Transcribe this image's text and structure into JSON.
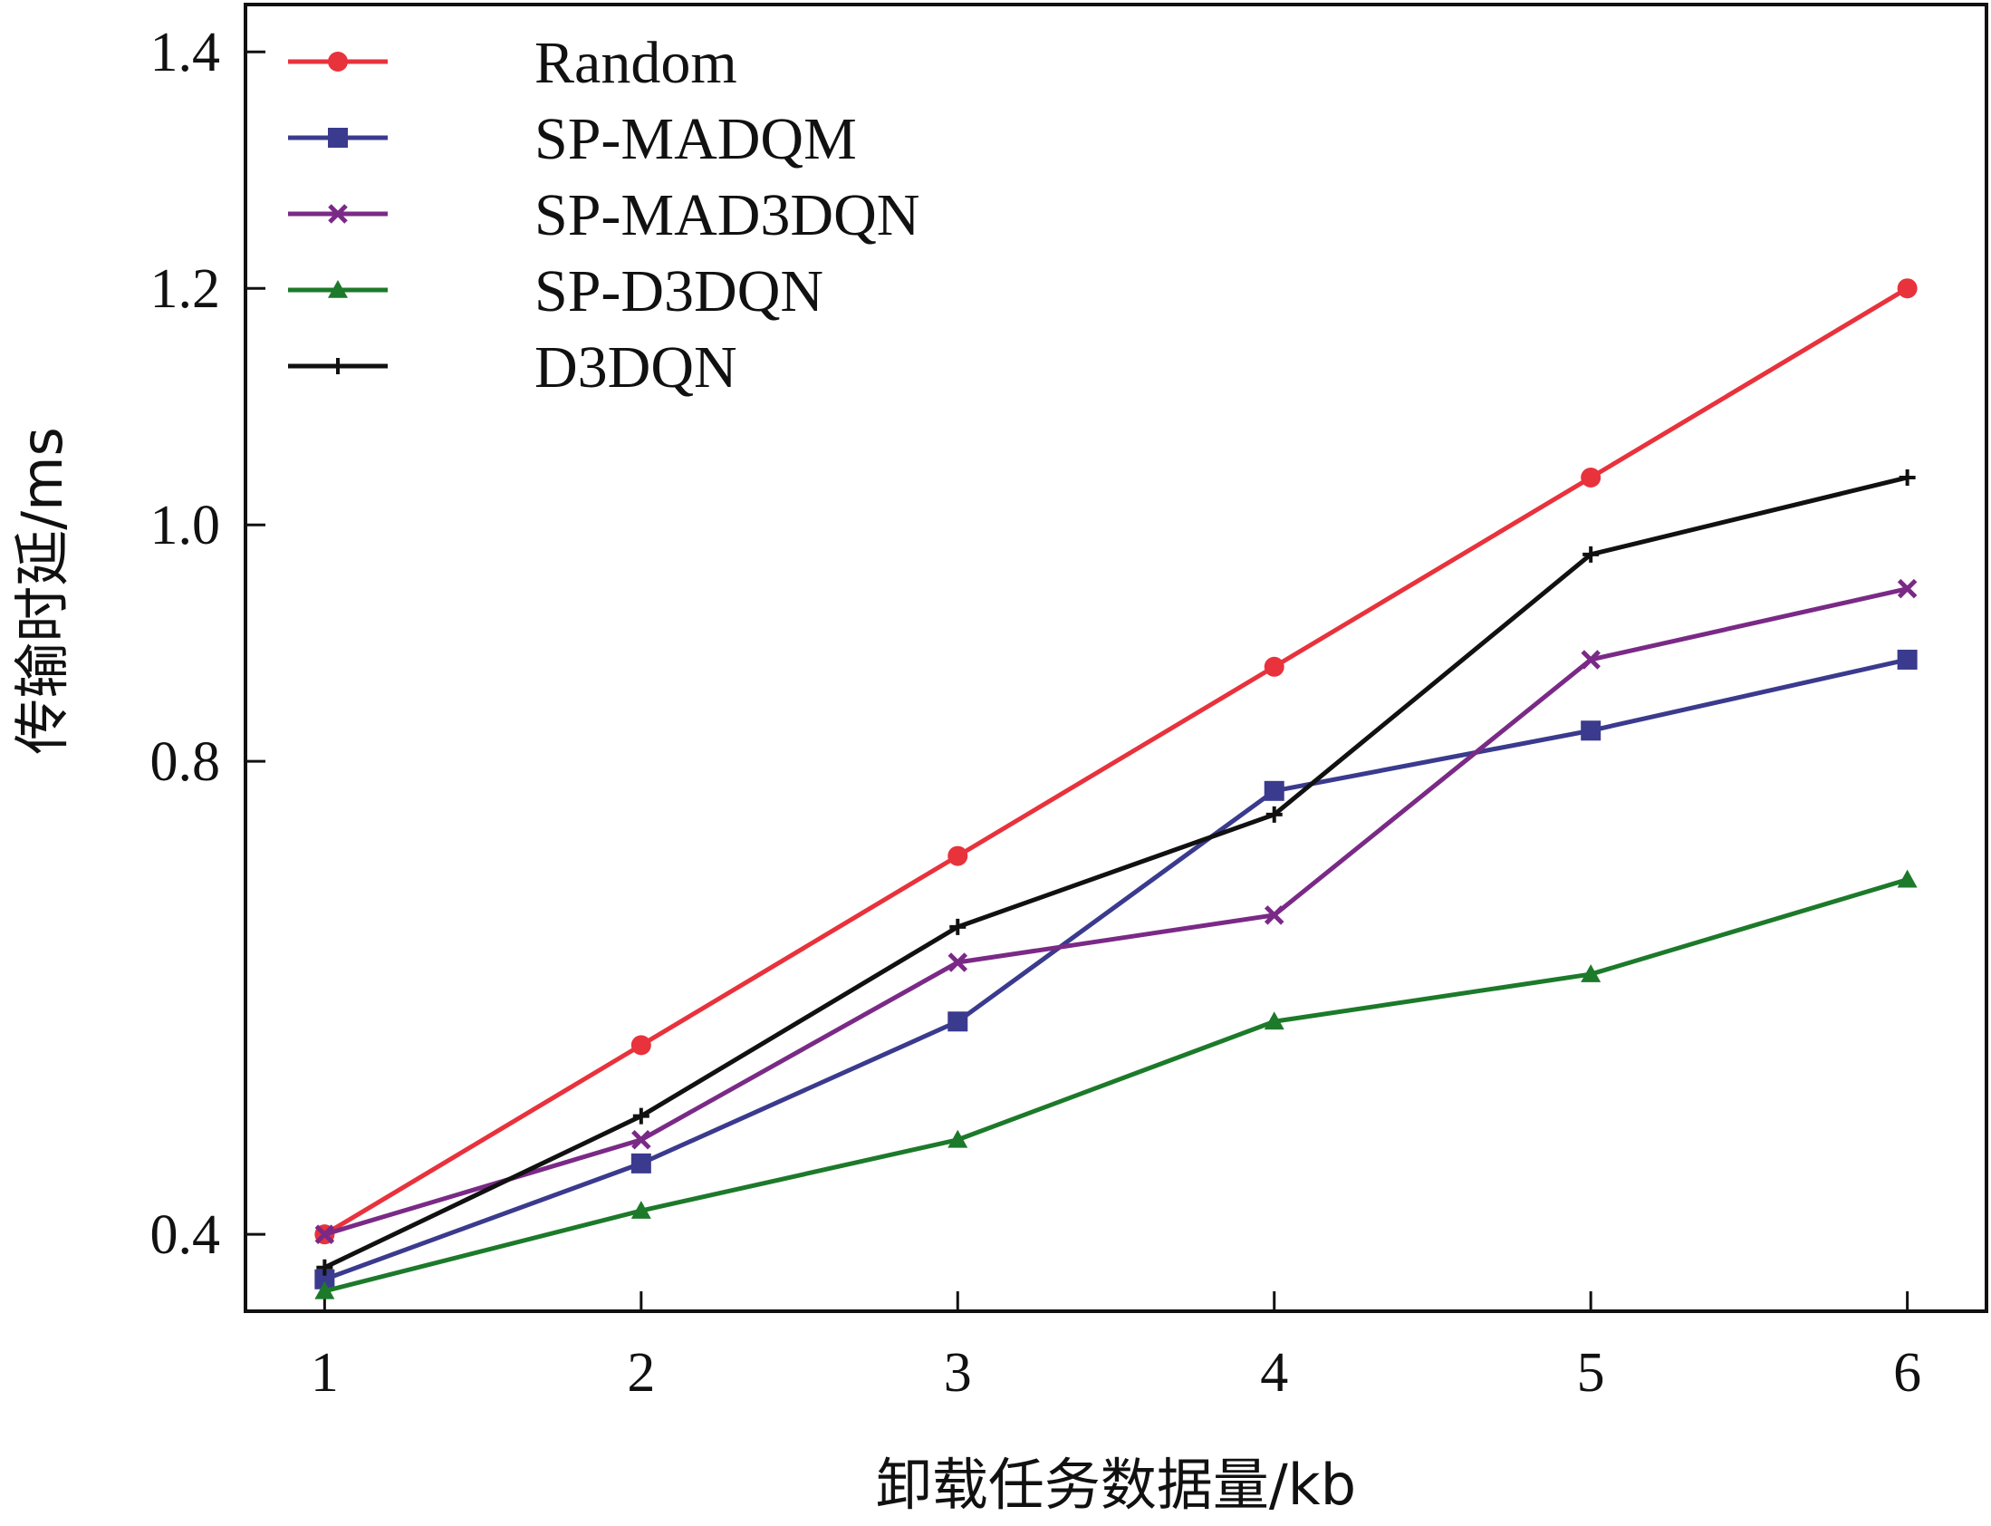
{
  "chart_data": {
    "type": "line",
    "xlabel": "卸载任务数据量/kb",
    "ylabel": "传输时延/ms",
    "x": [
      1,
      2,
      3,
      4,
      5,
      6
    ],
    "xticks": [
      1,
      2,
      3,
      4,
      5,
      6
    ],
    "yticks": [
      0.4,
      0.8,
      1.0,
      1.2,
      1.4
    ],
    "ytick_labels": [
      "0.4",
      "0.8",
      "1.0",
      "1.2",
      "1.4"
    ],
    "xlim": [
      0.75,
      6.25
    ],
    "ylim": [
      0.335,
      1.44
    ],
    "grid": false,
    "legend_position": "top-left",
    "series": [
      {
        "name": "Random",
        "color": "#e8323c",
        "marker": "circle",
        "values": [
          0.4,
          0.56,
          0.72,
          0.88,
          1.04,
          1.2
        ]
      },
      {
        "name": "SP-MADQM",
        "color": "#3a3a8e",
        "marker": "square",
        "values": [
          0.362,
          0.46,
          0.58,
          0.775,
          0.826,
          0.886
        ]
      },
      {
        "name": "SP-MAD3DQN",
        "color": "#7a2a86",
        "marker": "x",
        "values": [
          0.4,
          0.48,
          0.63,
          0.67,
          0.886,
          0.946
        ]
      },
      {
        "name": "SP-D3DQN",
        "color": "#1c7a2a",
        "marker": "triangle",
        "values": [
          0.352,
          0.42,
          0.48,
          0.58,
          0.62,
          0.7
        ]
      },
      {
        "name": "D3DQN",
        "color": "#111111",
        "marker": "plus",
        "values": [
          0.372,
          0.5,
          0.66,
          0.755,
          0.975,
          1.04
        ]
      }
    ]
  }
}
